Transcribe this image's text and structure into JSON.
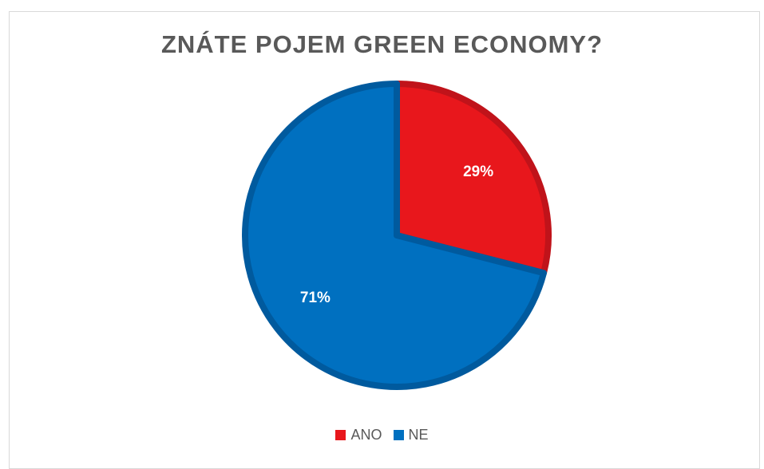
{
  "chart_data": {
    "type": "pie",
    "title": "ZNÁTE POJEM GREEN ECONOMY?",
    "categories": [
      "ANO",
      "NE"
    ],
    "values": [
      29,
      71
    ],
    "data_labels": [
      "29%",
      "71%"
    ],
    "colors": [
      "#e8171c",
      "#0070c0"
    ],
    "legend_position": "bottom",
    "legend": [
      {
        "label": "ANO",
        "color": "#e8171c"
      },
      {
        "label": "NE",
        "color": "#0070c0"
      }
    ]
  }
}
